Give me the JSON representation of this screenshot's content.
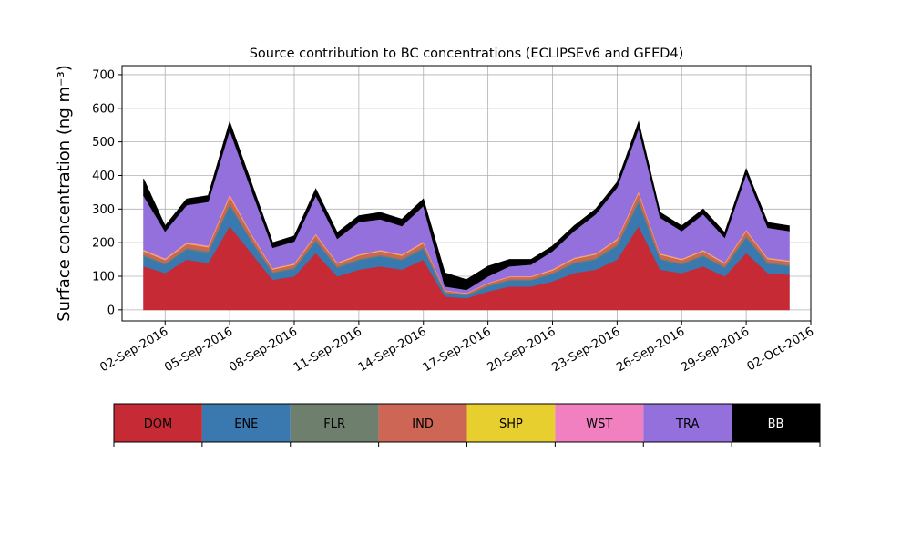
{
  "chart_data": {
    "type": "stacked_area",
    "title": "Source contribution to BC concentrations (ECLIPSEv6 and GFED4)",
    "y_label": "Surface concentration (ng m⁻³)",
    "x": [
      "2016-09-01",
      "2016-09-02",
      "2016-09-03",
      "2016-09-04",
      "2016-09-05",
      "2016-09-06",
      "2016-09-07",
      "2016-09-08",
      "2016-09-09",
      "2016-09-10",
      "2016-09-11",
      "2016-09-12",
      "2016-09-13",
      "2016-09-14",
      "2016-09-15",
      "2016-09-16",
      "2016-09-17",
      "2016-09-18",
      "2016-09-19",
      "2016-09-20",
      "2016-09-21",
      "2016-09-22",
      "2016-09-23",
      "2016-09-24",
      "2016-09-25",
      "2016-09-26",
      "2016-09-27",
      "2016-09-28",
      "2016-09-29",
      "2016-09-30",
      "2016-10-01"
    ],
    "series": [
      {
        "name": "DOM",
        "color": "#c52a35",
        "values": [
          130,
          110,
          150,
          140,
          250,
          170,
          90,
          100,
          170,
          100,
          120,
          130,
          120,
          150,
          40,
          35,
          55,
          70,
          70,
          85,
          110,
          120,
          150,
          250,
          120,
          110,
          130,
          100,
          170,
          110,
          105
        ]
      },
      {
        "name": "ENE",
        "color": "#3a78b0",
        "values": [
          30,
          25,
          30,
          30,
          60,
          35,
          20,
          22,
          35,
          25,
          28,
          30,
          28,
          32,
          10,
          8,
          15,
          18,
          18,
          22,
          28,
          30,
          40,
          70,
          30,
          25,
          30,
          25,
          45,
          28,
          25
        ]
      },
      {
        "name": "FLR",
        "color": "#6e7f6e",
        "values": [
          5,
          4,
          5,
          5,
          8,
          5,
          3,
          4,
          5,
          4,
          4,
          4,
          4,
          5,
          2,
          2,
          3,
          3,
          3,
          3,
          4,
          4,
          5,
          8,
          4,
          4,
          4,
          4,
          6,
          4,
          4
        ]
      },
      {
        "name": "IND",
        "color": "#cd6655",
        "values": [
          10,
          10,
          12,
          12,
          20,
          14,
          8,
          9,
          13,
          9,
          10,
          11,
          10,
          12,
          5,
          4,
          6,
          7,
          7,
          8,
          10,
          11,
          13,
          20,
          11,
          10,
          11,
          9,
          14,
          10,
          10
        ]
      },
      {
        "name": "SHP",
        "color": "#e8cf30",
        "values": [
          2,
          2,
          2,
          2,
          3,
          2,
          2,
          2,
          2,
          2,
          2,
          2,
          2,
          2,
          1,
          1,
          1,
          1,
          1,
          2,
          2,
          2,
          2,
          3,
          2,
          2,
          2,
          2,
          2,
          2,
          2
        ]
      },
      {
        "name": "WST",
        "color": "#f080c0",
        "values": [
          3,
          3,
          3,
          3,
          5,
          3,
          2,
          2,
          3,
          2,
          2,
          2,
          2,
          3,
          1,
          1,
          1,
          2,
          2,
          2,
          2,
          2,
          3,
          4,
          2,
          2,
          2,
          2,
          3,
          2,
          2
        ]
      },
      {
        "name": "TRA",
        "color": "#9370db",
        "values": [
          160,
          80,
          110,
          130,
          190,
          130,
          60,
          65,
          112,
          70,
          96,
          91,
          84,
          106,
          11,
          9,
          19,
          29,
          34,
          53,
          79,
          116,
          152,
          185,
          106,
          82,
          106,
          73,
          165,
          89,
          87
        ]
      },
      {
        "name": "BB",
        "color": "#000000",
        "values": [
          50,
          16,
          18,
          18,
          24,
          21,
          15,
          16,
          20,
          18,
          18,
          20,
          20,
          20,
          40,
          30,
          30,
          20,
          15,
          15,
          15,
          15,
          15,
          20,
          15,
          15,
          15,
          15,
          15,
          15,
          15
        ]
      }
    ],
    "xlim": [
      "2016-08-31",
      "2016-10-02"
    ],
    "xticks": [
      {
        "value": "2016-09-02",
        "label": "02-Sep-2016"
      },
      {
        "value": "2016-09-05",
        "label": "05-Sep-2016"
      },
      {
        "value": "2016-09-08",
        "label": "08-Sep-2016"
      },
      {
        "value": "2016-09-11",
        "label": "11-Sep-2016"
      },
      {
        "value": "2016-09-14",
        "label": "14-Sep-2016"
      },
      {
        "value": "2016-09-17",
        "label": "17-Sep-2016"
      },
      {
        "value": "2016-09-20",
        "label": "20-Sep-2016"
      },
      {
        "value": "2016-09-23",
        "label": "23-Sep-2016"
      },
      {
        "value": "2016-09-26",
        "label": "26-Sep-2016"
      },
      {
        "value": "2016-09-29",
        "label": "29-Sep-2016"
      },
      {
        "value": "2016-10-02",
        "label": "02-Oct-2016"
      }
    ],
    "ylim": [
      -33,
      727
    ],
    "yticks": [
      0,
      100,
      200,
      300,
      400,
      500,
      600,
      700
    ],
    "grid": true
  }
}
